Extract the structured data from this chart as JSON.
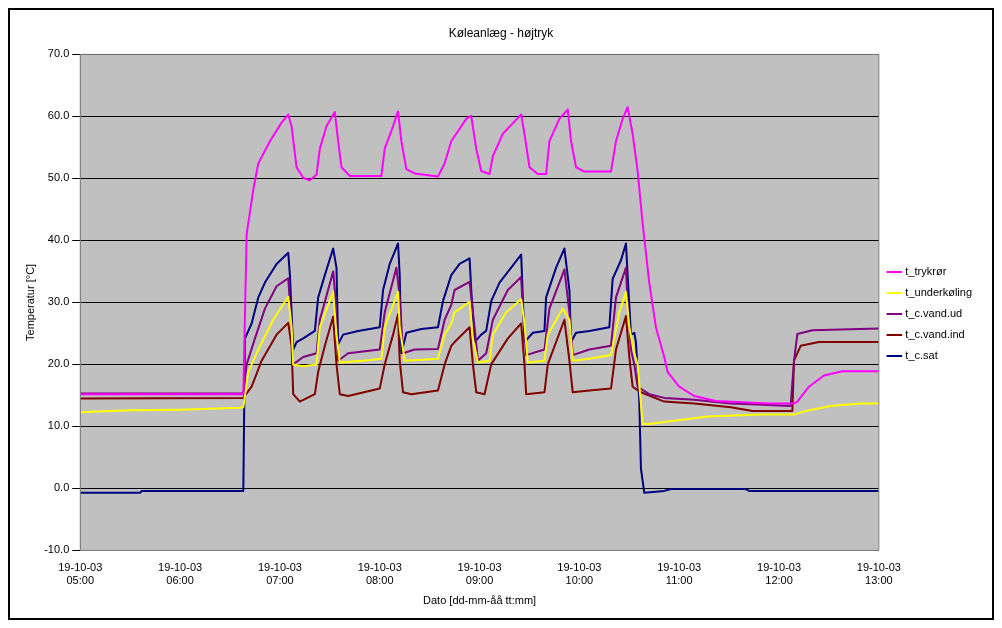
{
  "chart_data": {
    "type": "line",
    "title": "Køleanlæg - højtryk",
    "xlabel": "Dato [dd-mm-åå tt:mm]",
    "ylabel": "Temperatur [°C]",
    "xlim": [
      "--10-19T05:00",
      "--10-19T13:00"
    ],
    "xticks": [
      {
        "value": "--10-19T05:00",
        "label": "19-10-03 05:00"
      },
      {
        "value": "--10-19T06:00",
        "label": "19-10-03 06:00"
      },
      {
        "value": "--10-19T07:00",
        "label": "19-10-03 07:00"
      },
      {
        "value": "--10-19T08:00",
        "label": "19-10-03 08:00"
      },
      {
        "value": "--10-19T09:00",
        "label": "19-10-03 09:00"
      },
      {
        "value": "--10-19T10:00",
        "label": "19-10-03 10:00"
      },
      {
        "value": "--10-19T11:00",
        "label": "19-10-03 11:00"
      },
      {
        "value": "--10-19T12:00",
        "label": "19-10-03 12:00"
      },
      {
        "value": "--10-19T13:00",
        "label": "19-10-03 13:00"
      }
    ],
    "ylim": [
      -10,
      70
    ],
    "yticks": [
      {
        "value": -10,
        "label": "-10.0"
      },
      {
        "value": 0,
        "label": "0.0"
      },
      {
        "value": 10,
        "label": "10.0"
      },
      {
        "value": 20,
        "label": "20.0"
      },
      {
        "value": 30,
        "label": "30.0"
      },
      {
        "value": 40,
        "label": "40.0"
      },
      {
        "value": 50,
        "label": "50.0"
      },
      {
        "value": 60,
        "label": "60.0"
      },
      {
        "value": 70,
        "label": "70.0"
      }
    ],
    "grid": "y",
    "legend": "right",
    "series": [
      {
        "name": "t_trykrør",
        "color": "#ff00ff",
        "x": [
          "--10-19T05:00",
          "--10-19T06:36",
          "--10-19T06:38",
          "--10-19T06:40",
          "--10-19T06:44",
          "--10-19T06:47",
          "--10-19T06:54",
          "--10-19T07:01",
          "--10-19T07:05",
          "--10-19T07:07",
          "--10-19T07:10",
          "--10-19T07:14",
          "--10-19T07:18",
          "--10-19T07:22",
          "--10-19T07:24",
          "--10-19T07:28",
          "--10-19T07:33",
          "--10-19T07:35",
          "--10-19T07:37",
          "--10-19T07:42",
          "--10-19T08:01",
          "--10-19T08:03",
          "--10-19T08:08",
          "--10-19T08:11",
          "--10-19T08:13",
          "--10-19T08:16",
          "--10-19T08:21",
          "--10-19T08:35",
          "--10-19T08:39",
          "--10-19T08:43",
          "--10-19T08:52",
          "--10-19T08:55",
          "--10-19T08:58",
          "--10-19T09:01",
          "--10-19T09:06",
          "--10-19T09:08",
          "--10-19T09:14",
          "--10-19T09:25",
          "--10-19T09:27",
          "--10-19T09:30",
          "--10-19T09:35",
          "--10-19T09:40",
          "--10-19T09:42",
          "--10-19T09:48",
          "--10-19T09:53",
          "--10-19T09:55",
          "--10-19T09:58",
          "--10-19T10:03",
          "--10-19T10:19",
          "--10-19T10:22",
          "--10-19T10:26",
          "--10-19T10:29",
          "--10-19T10:32",
          "--10-19T10:35",
          "--10-19T10:38",
          "--10-19T10:42",
          "--10-19T10:46",
          "--10-19T10:51",
          "--10-19T10:53",
          "--10-19T11:00",
          "--10-19T11:09",
          "--10-19T11:22",
          "--10-19T11:53",
          "--10-19T12:09",
          "--10-19T12:11",
          "--10-19T12:18",
          "--10-19T12:27",
          "--10-19T12:38",
          "--10-19T13:00"
        ],
        "values": [
          15.2,
          15.2,
          15.2,
          41,
          48.2,
          52.4,
          56,
          59,
          60.3,
          58.4,
          51.8,
          50.1,
          49.7,
          50.6,
          54.8,
          58.4,
          60.7,
          56,
          51.8,
          50.4,
          50.4,
          54.8,
          58.4,
          60.8,
          56,
          51.5,
          50.8,
          50.3,
          52.4,
          56,
          59.6,
          60.1,
          54.8,
          51.2,
          50.7,
          53.6,
          57.2,
          60.3,
          57.2,
          51.8,
          50.7,
          50.7,
          56,
          59.6,
          61.1,
          56,
          51.8,
          51.1,
          51.1,
          56,
          59.6,
          61.5,
          57.2,
          51.2,
          42.8,
          33.2,
          26,
          21.2,
          18.8,
          16.4,
          14.9,
          14.1,
          13.7,
          13.7,
          14,
          16.4,
          18.2,
          18.9,
          18.9
        ]
      },
      {
        "name": "t_underkøling",
        "color": "#ffff00",
        "x": [
          "--10-19T05:00",
          "--10-19T05:30",
          "--10-19T06:00",
          "--10-19T06:36",
          "--10-19T06:38",
          "--10-19T06:41",
          "--10-19T06:47",
          "--10-19T06:56",
          "--10-19T07:05",
          "--10-19T07:07",
          "--10-19T07:08",
          "--10-19T07:14",
          "--10-19T07:22",
          "--10-19T07:24",
          "--10-19T07:32",
          "--10-19T07:34",
          "--10-19T07:36",
          "--10-19T07:50",
          "--10-19T08:01",
          "--10-19T08:03",
          "--10-19T08:11",
          "--10-19T08:12",
          "--10-19T08:15",
          "--10-19T08:35",
          "--10-19T08:39",
          "--10-19T08:43",
          "--10-19T08:45",
          "--10-19T08:54",
          "--10-19T08:56",
          "--10-19T08:59",
          "--10-19T09:06",
          "--10-19T09:08",
          "--10-19T09:16",
          "--10-19T09:25",
          "--10-19T09:27",
          "--10-19T09:29",
          "--10-19T09:39",
          "--10-19T09:41",
          "--10-19T09:50",
          "--10-19T09:54",
          "--10-19T09:56",
          "--10-19T10:06",
          "--10-19T10:19",
          "--10-19T10:24",
          "--10-19T10:28",
          "--10-19T10:30",
          "--10-19T10:33",
          "--10-19T10:35",
          "--10-19T10:38",
          "--10-19T10:42",
          "--10-19T10:51",
          "--10-19T11:09",
          "--10-19T11:17",
          "--10-19T11:49",
          "--10-19T12:09",
          "--10-19T12:16",
          "--10-19T12:31",
          "--10-19T12:49",
          "--10-19T13:00"
        ],
        "values": [
          12.3,
          12.6,
          12.7,
          13,
          13.1,
          18.8,
          22.4,
          27.2,
          30.9,
          26,
          20,
          19.7,
          20,
          26,
          31.7,
          24.8,
          20.3,
          20.6,
          20.9,
          26,
          31.7,
          26,
          20.6,
          20.9,
          24.8,
          26.6,
          28.4,
          30.1,
          24.2,
          20.3,
          20.6,
          24.8,
          28.4,
          30.5,
          26.6,
          20.3,
          20.6,
          24.8,
          29,
          27.2,
          20.6,
          20.9,
          21.5,
          28.4,
          31.7,
          26,
          21.8,
          20,
          10.4,
          10.4,
          10.7,
          11.3,
          11.6,
          11.9,
          11.9,
          12.5,
          13.3,
          13.7,
          13.7
        ]
      },
      {
        "name": "t_c.vand.ud",
        "color": "#800080",
        "x": [
          "--10-19T05:00",
          "--10-19T06:38",
          "--10-19T06:40",
          "--10-19T06:45",
          "--10-19T06:51",
          "--10-19T06:58",
          "--10-19T07:05",
          "--10-19T07:07",
          "--10-19T07:08",
          "--10-19T07:14",
          "--10-19T07:22",
          "--10-19T07:24",
          "--10-19T07:32",
          "--10-19T07:33",
          "--10-19T07:35",
          "--10-19T07:41",
          "--10-19T08:00",
          "--10-19T08:03",
          "--10-19T08:10",
          "--10-19T08:12",
          "--10-19T08:14",
          "--10-19T08:21",
          "--10-19T08:35",
          "--10-19T08:39",
          "--10-19T08:43",
          "--10-19T08:45",
          "--10-19T08:54",
          "--10-19T08:57",
          "--10-19T08:59",
          "--10-19T09:04",
          "--10-19T09:08",
          "--10-19T09:17",
          "--10-19T09:25",
          "--10-19T09:26",
          "--10-19T09:28",
          "--10-19T09:39",
          "--10-19T09:42",
          "--10-19T09:51",
          "--10-19T09:54",
          "--10-19T09:56",
          "--10-19T10:06",
          "--10-19T10:19",
          "--10-19T10:22",
          "--10-19T10:28",
          "--10-19T10:29",
          "--10-19T10:31",
          "--10-19T10:33",
          "--10-19T10:35",
          "--10-19T10:42",
          "--10-19T10:51",
          "--10-19T11:09",
          "--10-19T11:31",
          "--10-19T12:07",
          "--10-19T12:09",
          "--10-19T12:11",
          "--10-19T12:20",
          "--10-19T13:00"
        ],
        "values": [
          15.3,
          15.3,
          20,
          24.2,
          29,
          32.6,
          33.9,
          26,
          20,
          21.2,
          21.8,
          27.2,
          35,
          32,
          20.6,
          21.8,
          22.4,
          28.4,
          35.6,
          30.8,
          21.8,
          22.4,
          22.5,
          27.2,
          29.6,
          32,
          33.3,
          26,
          20.6,
          21.8,
          27.2,
          32,
          34.1,
          29,
          21.5,
          22.4,
          29,
          35.3,
          28.4,
          21.5,
          22.4,
          23,
          30.8,
          35.6,
          29.6,
          22.4,
          20,
          16.4,
          15.2,
          14.6,
          14.3,
          13.7,
          13.3,
          20.6,
          24.9,
          25.5,
          25.8
        ]
      },
      {
        "name": "t_c.vand.ind",
        "color": "#800000",
        "x": [
          "--10-19T05:00",
          "--10-19T06:38",
          "--10-19T06:43",
          "--10-19T06:49",
          "--10-19T06:58",
          "--10-19T07:05",
          "--10-19T07:07",
          "--10-19T07:08",
          "--10-19T07:12",
          "--10-19T07:21",
          "--10-19T07:23",
          "--10-19T07:27",
          "--10-19T07:32",
          "--10-19T07:34",
          "--10-19T07:36",
          "--10-19T07:41",
          "--10-19T08:00",
          "--10-19T08:03",
          "--10-19T08:08",
          "--10-19T08:11",
          "--10-19T08:12",
          "--10-19T08:14",
          "--10-19T08:19",
          "--10-19T08:35",
          "--10-19T08:39",
          "--10-19T08:43",
          "--10-19T08:45",
          "--10-19T08:54",
          "--10-19T08:56",
          "--10-19T08:58",
          "--10-19T09:03",
          "--10-19T09:07",
          "--10-19T09:17",
          "--10-19T09:25",
          "--10-19T09:27",
          "--10-19T09:28",
          "--10-19T09:39",
          "--10-19T09:41",
          "--10-19T09:51",
          "--10-19T09:54",
          "--10-19T09:56",
          "--10-19T10:06",
          "--10-19T10:19",
          "--10-19T10:22",
          "--10-19T10:28",
          "--10-19T10:30",
          "--10-19T10:32",
          "--10-19T10:37",
          "--10-19T10:51",
          "--10-19T11:09",
          "--10-19T11:31",
          "--10-19T11:44",
          "--10-19T12:08",
          "--10-19T12:09",
          "--10-19T12:13",
          "--10-19T12:24",
          "--10-19T13:00"
        ],
        "values": [
          14.5,
          14.6,
          16.4,
          20.6,
          24.8,
          26.7,
          23,
          15.2,
          14,
          15.2,
          18.8,
          23,
          27.7,
          20,
          15.2,
          14.9,
          16.1,
          20,
          24.8,
          28.1,
          20.6,
          15.5,
          15.2,
          15.8,
          20,
          23,
          23.6,
          26,
          20,
          15.5,
          15.2,
          20,
          24.2,
          26.6,
          20,
          15.2,
          15.5,
          20,
          27.2,
          20.6,
          15.5,
          15.8,
          16.1,
          22.4,
          27.8,
          21.2,
          16.4,
          15.5,
          14,
          13.7,
          13.1,
          12.5,
          12.5,
          20.6,
          23,
          23.6,
          23.6
        ]
      },
      {
        "name": "t_c.sat",
        "color": "#000080",
        "x": [
          "--10-19T05:00",
          "--10-19T05:36",
          "--10-19T05:37",
          "--10-19T06:38",
          "--10-19T06:39",
          "--10-19T06:43",
          "--10-19T06:47",
          "--10-19T06:51",
          "--10-19T06:58",
          "--10-19T07:05",
          "--10-19T07:06",
          "--10-19T07:08",
          "--10-19T07:10",
          "--10-19T07:14",
          "--10-19T07:21",
          "--10-19T07:23",
          "--10-19T07:27",
          "--10-19T07:32",
          "--10-19T07:34",
          "--10-19T07:35",
          "--10-19T07:38",
          "--10-19T07:47",
          "--10-19T08:00",
          "--10-19T08:02",
          "--10-19T08:06",
          "--10-19T08:11",
          "--10-19T08:12",
          "--10-19T08:13",
          "--10-19T08:16",
          "--10-19T08:25",
          "--10-19T08:35",
          "--10-19T08:38",
          "--10-19T08:43",
          "--10-19T08:48",
          "--10-19T08:54",
          "--10-19T08:55",
          "--10-19T08:57",
          "--10-19T09:01",
          "--10-19T09:04",
          "--10-19T09:07",
          "--10-19T09:12",
          "--10-19T09:19",
          "--10-19T09:25",
          "--10-19T09:26",
          "--10-19T09:27",
          "--10-19T09:32",
          "--10-19T09:39",
          "--10-19T09:40",
          "--10-19T09:46",
          "--10-19T09:51",
          "--10-19T09:54",
          "--10-19T09:55",
          "--10-19T09:58",
          "--10-19T10:06",
          "--10-19T10:18",
          "--10-19T10:20",
          "--10-19T10:25",
          "--10-19T10:28",
          "--10-19T10:29",
          "--10-19T10:31",
          "--10-19T10:33",
          "--10-19T10:34",
          "--10-19T10:36",
          "--10-19T10:37",
          "--10-19T10:39",
          "--10-19T10:51",
          "--10-19T10:55",
          "--10-19T11:40",
          "--10-19T11:42",
          "--10-19T13:00"
        ],
        "values": [
          -0.7,
          -0.7,
          -0.4,
          -0.4,
          24.2,
          26.6,
          30.8,
          33.2,
          36.2,
          38,
          34.4,
          22.4,
          23.6,
          24.2,
          25.4,
          30.8,
          34.4,
          38.7,
          35.6,
          23.3,
          24.8,
          25.4,
          26,
          32,
          36.2,
          39.5,
          34.4,
          21.8,
          25.1,
          25.7,
          26,
          30.2,
          34.4,
          36.2,
          37.1,
          32,
          23.6,
          24.8,
          25.4,
          30.2,
          33.2,
          35.6,
          37.7,
          30.8,
          23.6,
          25.1,
          25.4,
          30.8,
          35.6,
          38.7,
          32,
          23.6,
          25.1,
          25.4,
          26,
          33.8,
          36.8,
          39.5,
          34.4,
          24.8,
          25.1,
          23.6,
          14,
          3.2,
          -0.7,
          -0.4,
          -0.1,
          -0.1,
          -0.4,
          -0.4
        ]
      }
    ]
  }
}
